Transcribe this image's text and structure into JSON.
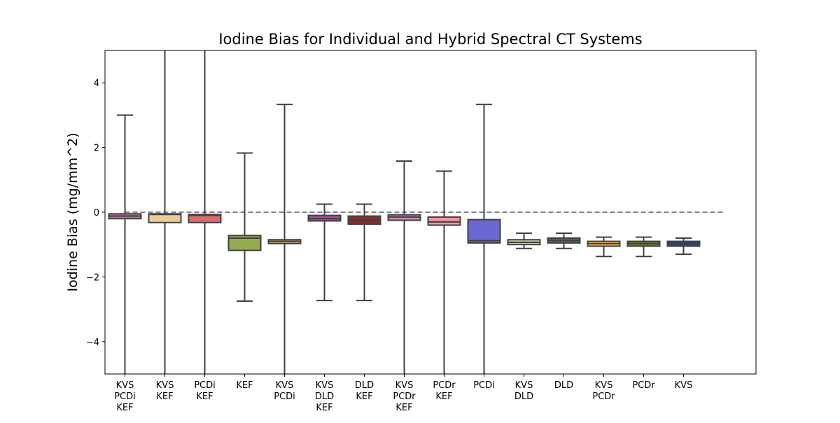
{
  "chart_data": {
    "type": "box",
    "title": "Iodine Bias for Individual and Hybrid Spectral CT Systems",
    "xlabel": "",
    "ylabel": "Iodine Bias (mg/mm^2)",
    "ylim": [
      -5,
      5
    ],
    "yticks": [
      4,
      2,
      0,
      -2,
      -4
    ],
    "ytick_labels": [
      "4",
      "2",
      "0",
      "−2",
      "−4"
    ],
    "reference_line": {
      "y": 0,
      "style": "dashed",
      "color": "#808080"
    },
    "grid": false,
    "categories": [
      {
        "lines": [
          "KVS",
          "PCDi",
          "KEF"
        ],
        "color": "#c46ea5",
        "whisker_low": -5.0,
        "q1": -0.2,
        "median": -0.12,
        "q3": -0.05,
        "whisker_high": 3.0
      },
      {
        "lines": [
          "KVS",
          "KEF"
        ],
        "color": "#ebcc94",
        "whisker_low": -5.0,
        "q1": -0.32,
        "median": -0.07,
        "q3": -0.05,
        "whisker_high": 5.0
      },
      {
        "lines": [
          "PCDi",
          "KEF"
        ],
        "color": "#e0686f",
        "whisker_low": -5.0,
        "q1": -0.32,
        "median": -0.1,
        "q3": -0.07,
        "whisker_high": 5.0
      },
      {
        "lines": [
          "KEF"
        ],
        "color": "#93ac4f",
        "whisker_low": -2.75,
        "q1": -1.18,
        "median": -0.8,
        "q3": -0.72,
        "whisker_high": 1.83
      },
      {
        "lines": [
          "KVS",
          "PCDi"
        ],
        "color": "#c7aa7f",
        "whisker_low": -5.0,
        "q1": -0.97,
        "median": -0.9,
        "q3": -0.85,
        "whisker_high": 3.33
      },
      {
        "lines": [
          "KVS",
          "DLD",
          "KEF"
        ],
        "color": "#ab4aa1",
        "whisker_low": -2.73,
        "q1": -0.27,
        "median": -0.2,
        "q3": -0.1,
        "whisker_high": 0.25
      },
      {
        "lines": [
          "DLD",
          "KEF"
        ],
        "color": "#8f2a2c",
        "whisker_low": -2.73,
        "q1": -0.37,
        "median": -0.25,
        "q3": -0.12,
        "whisker_high": 0.25
      },
      {
        "lines": [
          "KVS",
          "PCDr",
          "KEF"
        ],
        "color": "#c789b6",
        "whisker_low": -5.0,
        "q1": -0.25,
        "median": -0.15,
        "q3": -0.08,
        "whisker_high": 1.58
      },
      {
        "lines": [
          "PCDr",
          "KEF"
        ],
        "color": "#ea9b9f",
        "whisker_low": -5.0,
        "q1": -0.4,
        "median": -0.3,
        "q3": -0.15,
        "whisker_high": 1.27
      },
      {
        "lines": [
          "PCDi"
        ],
        "color": "#6b68d4",
        "whisker_low": -5.0,
        "q1": -0.95,
        "median": -0.88,
        "q3": -0.23,
        "whisker_high": 3.33
      },
      {
        "lines": [
          "KVS",
          "DLD"
        ],
        "color": "#cbd4a5",
        "whisker_low": -1.12,
        "q1": -1.0,
        "median": -0.93,
        "q3": -0.85,
        "whisker_high": -0.65
      },
      {
        "lines": [
          "DLD"
        ],
        "color": "#5a5ca7",
        "whisker_low": -1.12,
        "q1": -0.95,
        "median": -0.87,
        "q3": -0.8,
        "whisker_high": -0.65
      },
      {
        "lines": [
          "KVS",
          "PCDr"
        ],
        "color": "#e9b858",
        "whisker_low": -1.37,
        "q1": -1.05,
        "median": -0.97,
        "q3": -0.9,
        "whisker_high": -0.77
      },
      {
        "lines": [
          "PCDr"
        ],
        "color": "#6b7a3a",
        "whisker_low": -1.37,
        "q1": -1.05,
        "median": -0.97,
        "q3": -0.9,
        "whisker_high": -0.77
      },
      {
        "lines": [
          "KVS"
        ],
        "color": "#393f76",
        "whisker_low": -1.3,
        "q1": -1.05,
        "median": -0.98,
        "q3": -0.9,
        "whisker_high": -0.8
      }
    ]
  }
}
